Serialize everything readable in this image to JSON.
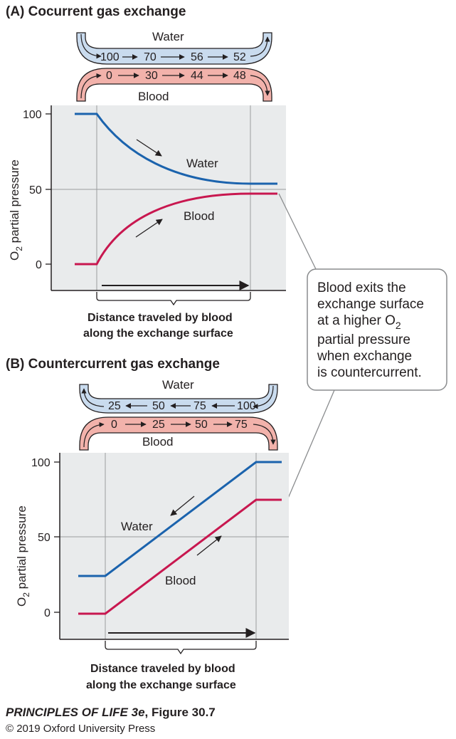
{
  "colors": {
    "water": "#1b63ad",
    "blood": "#c8174f",
    "water_band": "#c9dbee",
    "blood_band": "#f2b2ab",
    "plot_bg": "#e9ebec"
  },
  "panel_a": {
    "title": "(A)  Cocurrent gas exchange",
    "water_label": "Water",
    "blood_label": "Blood",
    "water_values": [
      "100",
      "70",
      "56",
      "52"
    ],
    "blood_values": [
      "0",
      "30",
      "44",
      "48"
    ],
    "curve_water_label": "Water",
    "curve_blood_label": "Blood",
    "y_axis_title_main": "O",
    "y_axis_title_sub": "2",
    "y_axis_title_rest": " partial pressure",
    "y_ticks": [
      "100",
      "50",
      "0"
    ],
    "x_caption_line1": "Distance traveled by blood",
    "x_caption_line2": "along the exchange surface"
  },
  "panel_b": {
    "title": "(B)  Countercurrent gas exchange",
    "water_label": "Water",
    "blood_label": "Blood",
    "water_values": [
      "25",
      "50",
      "75",
      "100"
    ],
    "blood_values": [
      "0",
      "25",
      "50",
      "75"
    ],
    "curve_water_label": "Water",
    "curve_blood_label": "Blood",
    "y_axis_title_main": "O",
    "y_axis_title_sub": "2",
    "y_axis_title_rest": " partial pressure",
    "y_ticks": [
      "100",
      "50",
      "0"
    ],
    "x_caption_line1": "Distance traveled by blood",
    "x_caption_line2": "along the exchange surface"
  },
  "callout": {
    "line1": "Blood exits the",
    "line2": "exchange surface",
    "line3_main": "at a higher O",
    "line3_sub": "2",
    "line4": "partial pressure",
    "line5": "when exchange",
    "line6": "is countercurrent."
  },
  "credit": {
    "book_title": "PRINCIPLES OF LIFE 3e",
    "figure": ", Figure 30.7",
    "copyright": "© 2019 Oxford University Press"
  }
}
